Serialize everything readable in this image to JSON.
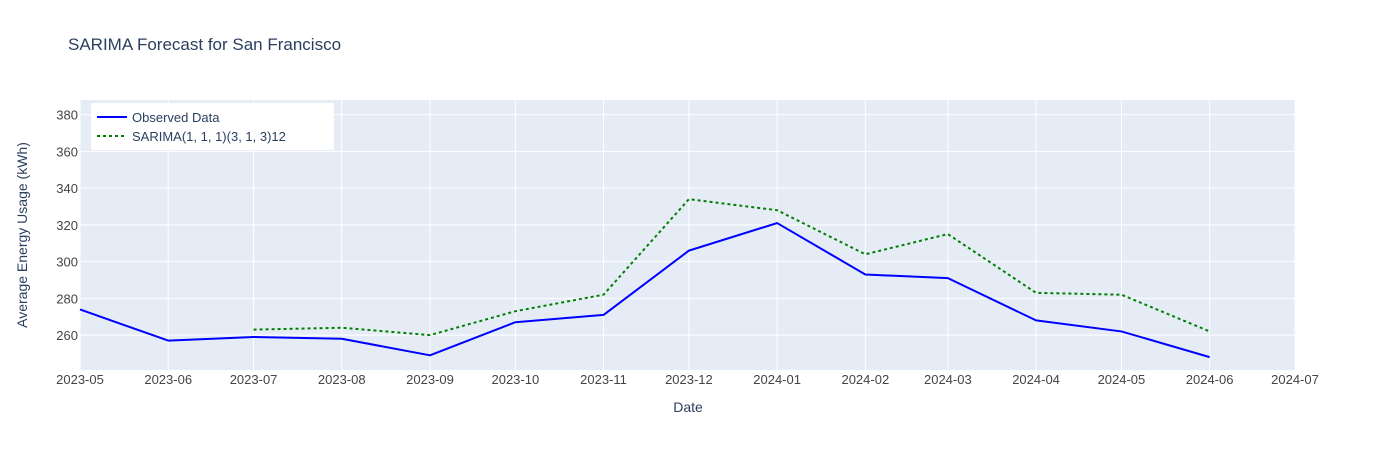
{
  "chart_data": {
    "type": "line",
    "title": "SARIMA Forecast for San Francisco",
    "xlabel": "Date",
    "ylabel": "Average Energy Usage (kWh)",
    "x_ticks": [
      "2023-05",
      "2023-06",
      "2023-07",
      "2023-08",
      "2023-09",
      "2023-10",
      "2023-11",
      "2023-12",
      "2024-01",
      "2024-02",
      "2024-03",
      "2024-04",
      "2024-05",
      "2024-06",
      "2024-07"
    ],
    "y_ticks": [
      260,
      280,
      300,
      320,
      340,
      360,
      380
    ],
    "xlim": [
      "2023-05-01",
      "2024-07-01"
    ],
    "ylim": [
      241,
      388
    ],
    "grid": true,
    "legend_position": "top-left",
    "colors": {
      "plot_bg": "#e5ecf6",
      "grid": "#ffffff",
      "text": "#2a3f5f",
      "axis_text": "#444444"
    },
    "series": [
      {
        "name": "Observed Data",
        "color": "#0000ff",
        "dash": "solid",
        "x": [
          "2023-05-01",
          "2023-06-01",
          "2023-07-01",
          "2023-08-01",
          "2023-09-01",
          "2023-10-01",
          "2023-11-01",
          "2023-12-01",
          "2024-01-01",
          "2024-02-01",
          "2024-03-01",
          "2024-04-01",
          "2024-05-01",
          "2024-06-01"
        ],
        "y": [
          274,
          257,
          259,
          258,
          249,
          267,
          271,
          306,
          321,
          293,
          291,
          268,
          262,
          248
        ]
      },
      {
        "name": "SARIMA(1, 1, 1)(3, 1, 3)12",
        "color": "#008000",
        "dash": "dot",
        "x": [
          "2023-07-01",
          "2023-08-01",
          "2023-09-01",
          "2023-10-01",
          "2023-11-01",
          "2023-12-01",
          "2024-01-01",
          "2024-02-01",
          "2024-03-01",
          "2024-04-01",
          "2024-05-01",
          "2024-06-01"
        ],
        "y": [
          263,
          264,
          260,
          273,
          282,
          334,
          328,
          304,
          315,
          283,
          282,
          262
        ]
      }
    ]
  }
}
